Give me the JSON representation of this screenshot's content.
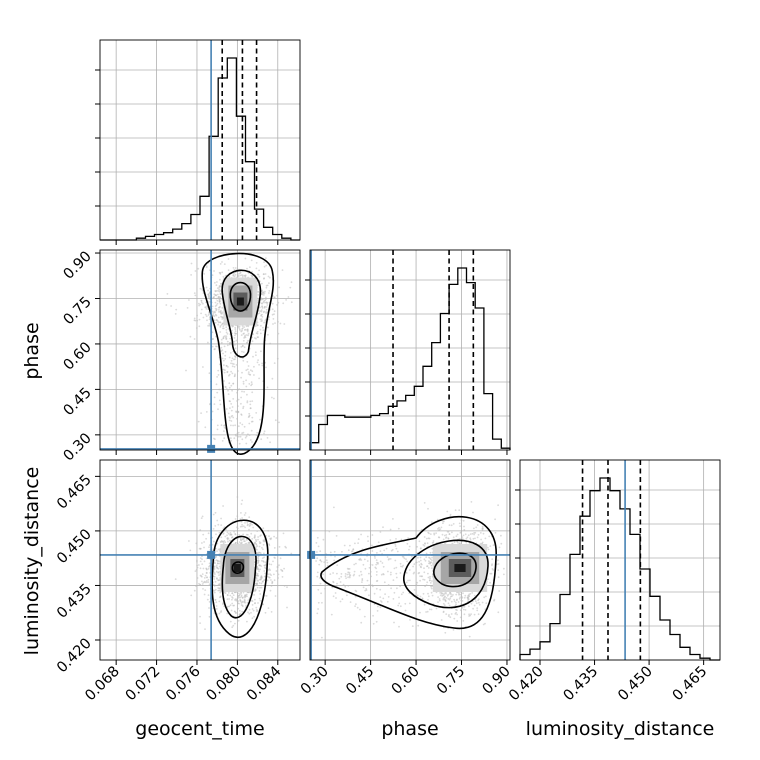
{
  "chart_data": {
    "type": "corner",
    "parameters": [
      "geocent_time",
      "phase",
      "luminosity_distance"
    ],
    "axis_labels": {
      "geocent_time": "geocent_time",
      "phase": "phase",
      "luminosity_distance": "luminosity_distance"
    },
    "ranges": {
      "geocent_time": [
        0.0664,
        0.0862
      ],
      "phase": [
        0.25,
        0.91
      ],
      "luminosity_distance": [
        0.4145,
        0.4695
      ]
    },
    "ticks": {
      "geocent_time": [
        "0.068",
        "0.072",
        "0.076",
        "0.080",
        "0.084"
      ],
      "phase": [
        "0.30",
        "0.45",
        "0.60",
        "0.75",
        "0.90"
      ],
      "luminosity_distance": [
        "0.420",
        "0.435",
        "0.450",
        "0.465"
      ]
    },
    "truths": {
      "geocent_time": 0.0774,
      "phase": 0.2537,
      "luminosity_distance": 0.4434
    },
    "quantiles": {
      "geocent_time": [
        0.0785,
        0.0805,
        0.0819
      ],
      "phase": [
        0.524,
        0.709,
        0.789
      ],
      "luminosity_distance": [
        0.4317,
        0.4387,
        0.4476
      ]
    },
    "histograms": {
      "geocent_time": [
        0,
        0,
        0,
        0,
        0.01,
        0.02,
        0.03,
        0.04,
        0.06,
        0.09,
        0.14,
        0.24,
        0.57,
        0.89,
        1.0,
        0.68,
        0.43,
        0.17,
        0.07,
        0.03,
        0.01,
        0
      ],
      "phase": [
        0.04,
        0.14,
        0.19,
        0.19,
        0.18,
        0.18,
        0.18,
        0.19,
        0.2,
        0.24,
        0.27,
        0.3,
        0.35,
        0.46,
        0.59,
        0.75,
        0.91,
        1.0,
        0.92,
        0.78,
        0.31,
        0.06,
        0.01
      ],
      "luminosity_distance": [
        0.03,
        0.06,
        0.1,
        0.2,
        0.36,
        0.58,
        0.79,
        0.93,
        1.0,
        0.93,
        0.83,
        0.69,
        0.5,
        0.35,
        0.22,
        0.14,
        0.07,
        0.03,
        0.01,
        0
      ]
    },
    "grid": true,
    "contours": true
  }
}
